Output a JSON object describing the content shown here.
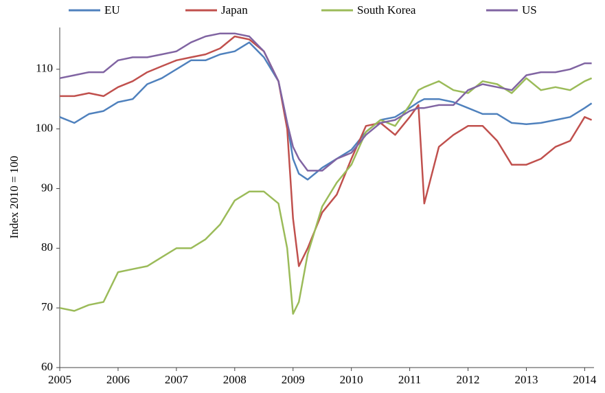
{
  "chart_data": {
    "type": "line",
    "y_label": "Index 2010 = 100",
    "x": [
      2005,
      2005.25,
      2005.5,
      2005.75,
      2006,
      2006.25,
      2006.5,
      2006.75,
      2007,
      2007.25,
      2007.5,
      2007.75,
      2008,
      2008.25,
      2008.5,
      2008.75,
      2008.9,
      2009,
      2009.1,
      2009.25,
      2009.5,
      2009.75,
      2010,
      2010.25,
      2010.5,
      2010.75,
      2011,
      2011.15,
      2011.25,
      2011.5,
      2011.75,
      2012,
      2012.25,
      2012.5,
      2012.75,
      2013,
      2013.25,
      2013.5,
      2013.75,
      2014,
      2014.12
    ],
    "series": [
      {
        "name": "EU",
        "color": "#4f81bd",
        "values": [
          102,
          101,
          102.5,
          103,
          104.5,
          105,
          107.5,
          108.5,
          110,
          111.5,
          111.5,
          112.5,
          113,
          114.5,
          112,
          108,
          101,
          95,
          92.5,
          91.5,
          93.5,
          95,
          96.5,
          99.5,
          101.5,
          102,
          103.5,
          104.5,
          105,
          105,
          104.5,
          103.5,
          102.5,
          102.5,
          101,
          100.8,
          101,
          101.5,
          102,
          103.5,
          104.3
        ]
      },
      {
        "name": "Japan",
        "color": "#c0504d",
        "values": [
          105.5,
          105.5,
          106,
          105.5,
          107,
          108,
          109.5,
          110.5,
          111.5,
          112,
          112.5,
          113.5,
          115.5,
          115,
          113,
          108,
          100,
          85,
          77,
          80,
          86,
          89,
          95,
          100.5,
          101,
          99,
          102,
          104,
          87.5,
          97,
          99,
          100.5,
          100.5,
          98,
          94,
          94,
          95,
          97,
          98,
          102,
          101.5
        ]
      },
      {
        "name": "South Korea",
        "color": "#9bbb59",
        "values": [
          70,
          69.5,
          70.5,
          71,
          76,
          76.5,
          77,
          78.5,
          80,
          80,
          81.5,
          84,
          88,
          89.5,
          89.5,
          87.5,
          80,
          69,
          71,
          79,
          87,
          91,
          94,
          99.5,
          101.5,
          100.5,
          104,
          106.5,
          107,
          108,
          106.5,
          106,
          108,
          107.5,
          106,
          108.5,
          106.5,
          107,
          106.5,
          108,
          108.5
        ]
      },
      {
        "name": "US",
        "color": "#8064a2",
        "values": [
          108.5,
          109,
          109.5,
          109.5,
          111.5,
          112,
          112,
          112.5,
          113,
          114.5,
          115.5,
          116,
          116,
          115.5,
          113,
          108,
          101,
          97,
          95,
          93,
          93,
          95,
          96,
          99,
          101,
          101.5,
          103,
          103.5,
          103.5,
          104,
          104,
          106.5,
          107.5,
          107,
          106.5,
          109,
          109.5,
          109.5,
          110,
          111,
          111
        ]
      }
    ],
    "xlim": [
      2005,
      2014.16
    ],
    "xticks": [
      2005,
      2006,
      2007,
      2008,
      2009,
      2010,
      2011,
      2012,
      2013,
      2014
    ],
    "ylim": [
      60,
      117
    ],
    "yticks": [
      60,
      70,
      80,
      90,
      100,
      110
    ],
    "legend": "top"
  }
}
